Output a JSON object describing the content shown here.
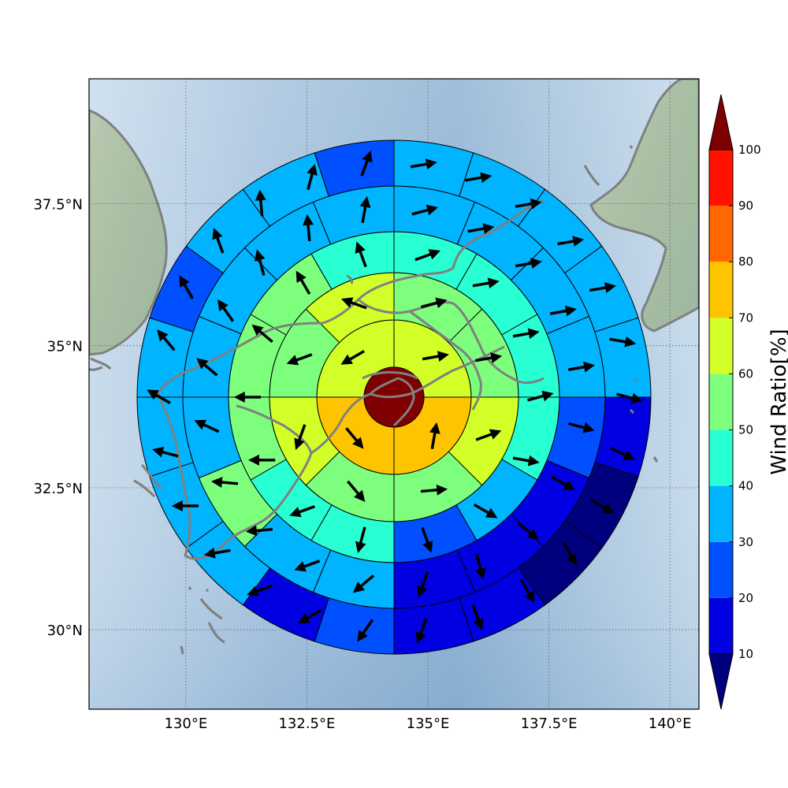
{
  "map": {
    "lon_labels": [
      "130°E",
      "132.5°E",
      "135°E",
      "137.5°E",
      "140°E"
    ],
    "lat_labels": [
      "37.5°N",
      "35°N",
      "32.5°N",
      "30°N"
    ],
    "lon_values": [
      130,
      132.5,
      135,
      137.5,
      140
    ],
    "lat_values": [
      37.5,
      35,
      32.5,
      30
    ],
    "lon_range": [
      128,
      140.6
    ],
    "lat_range": [
      28.6,
      39.7
    ],
    "grid_style": "dotted",
    "coastline_color": "#808080",
    "center_value": 100,
    "rings": [
      [
        65,
        75,
        75,
        65
      ],
      [
        55,
        55,
        60,
        55,
        55,
        65,
        50,
        65
      ],
      [
        45,
        45,
        45,
        45,
        35,
        25,
        45,
        45,
        55,
        55,
        55,
        45
      ],
      [
        35,
        35,
        35,
        35,
        25,
        15,
        15,
        15,
        35,
        35,
        55,
        35,
        35,
        35,
        35,
        35
      ],
      [
        35,
        35,
        35,
        35,
        35,
        15,
        5,
        5,
        15,
        15,
        25,
        15,
        35,
        35,
        35,
        35,
        25,
        35,
        35,
        25
      ]
    ],
    "arrows": [
      [
        80,
        10,
        140,
        240
      ],
      [
        75,
        80,
        70,
        85,
        140,
        200,
        250,
        290
      ],
      [
        70,
        80,
        80,
        75,
        100,
        120,
        160,
        195,
        250,
        270,
        270,
        310,
        330,
        340
      ],
      [
        75,
        80,
        80,
        80,
        80,
        105,
        120,
        130,
        165,
        200,
        230,
        250,
        265,
        275,
        295,
        310,
        325,
        345,
        355,
        10
      ],
      [
        80,
        80,
        80,
        80,
        80,
        100,
        105,
        115,
        120,
        150,
        150,
        160,
        200,
        215,
        240,
        250,
        260,
        270,
        285,
        300,
        320,
        330,
        340,
        355,
        15,
        20
      ]
    ]
  },
  "colorbar": {
    "label": "Wind Ratio[%]",
    "ticks": [
      "10",
      "20",
      "30",
      "40",
      "50",
      "60",
      "70",
      "80",
      "90",
      "100"
    ],
    "bounds": [
      10,
      20,
      30,
      40,
      50,
      60,
      70,
      80,
      90,
      100
    ],
    "colors": [
      "#0000e0",
      "#0050ff",
      "#00b4ff",
      "#28ffd2",
      "#7dff7d",
      "#d2ff28",
      "#ffc400",
      "#ff6800",
      "#ff1200"
    ],
    "under_color": "#00007f",
    "over_color": "#7f0000"
  }
}
